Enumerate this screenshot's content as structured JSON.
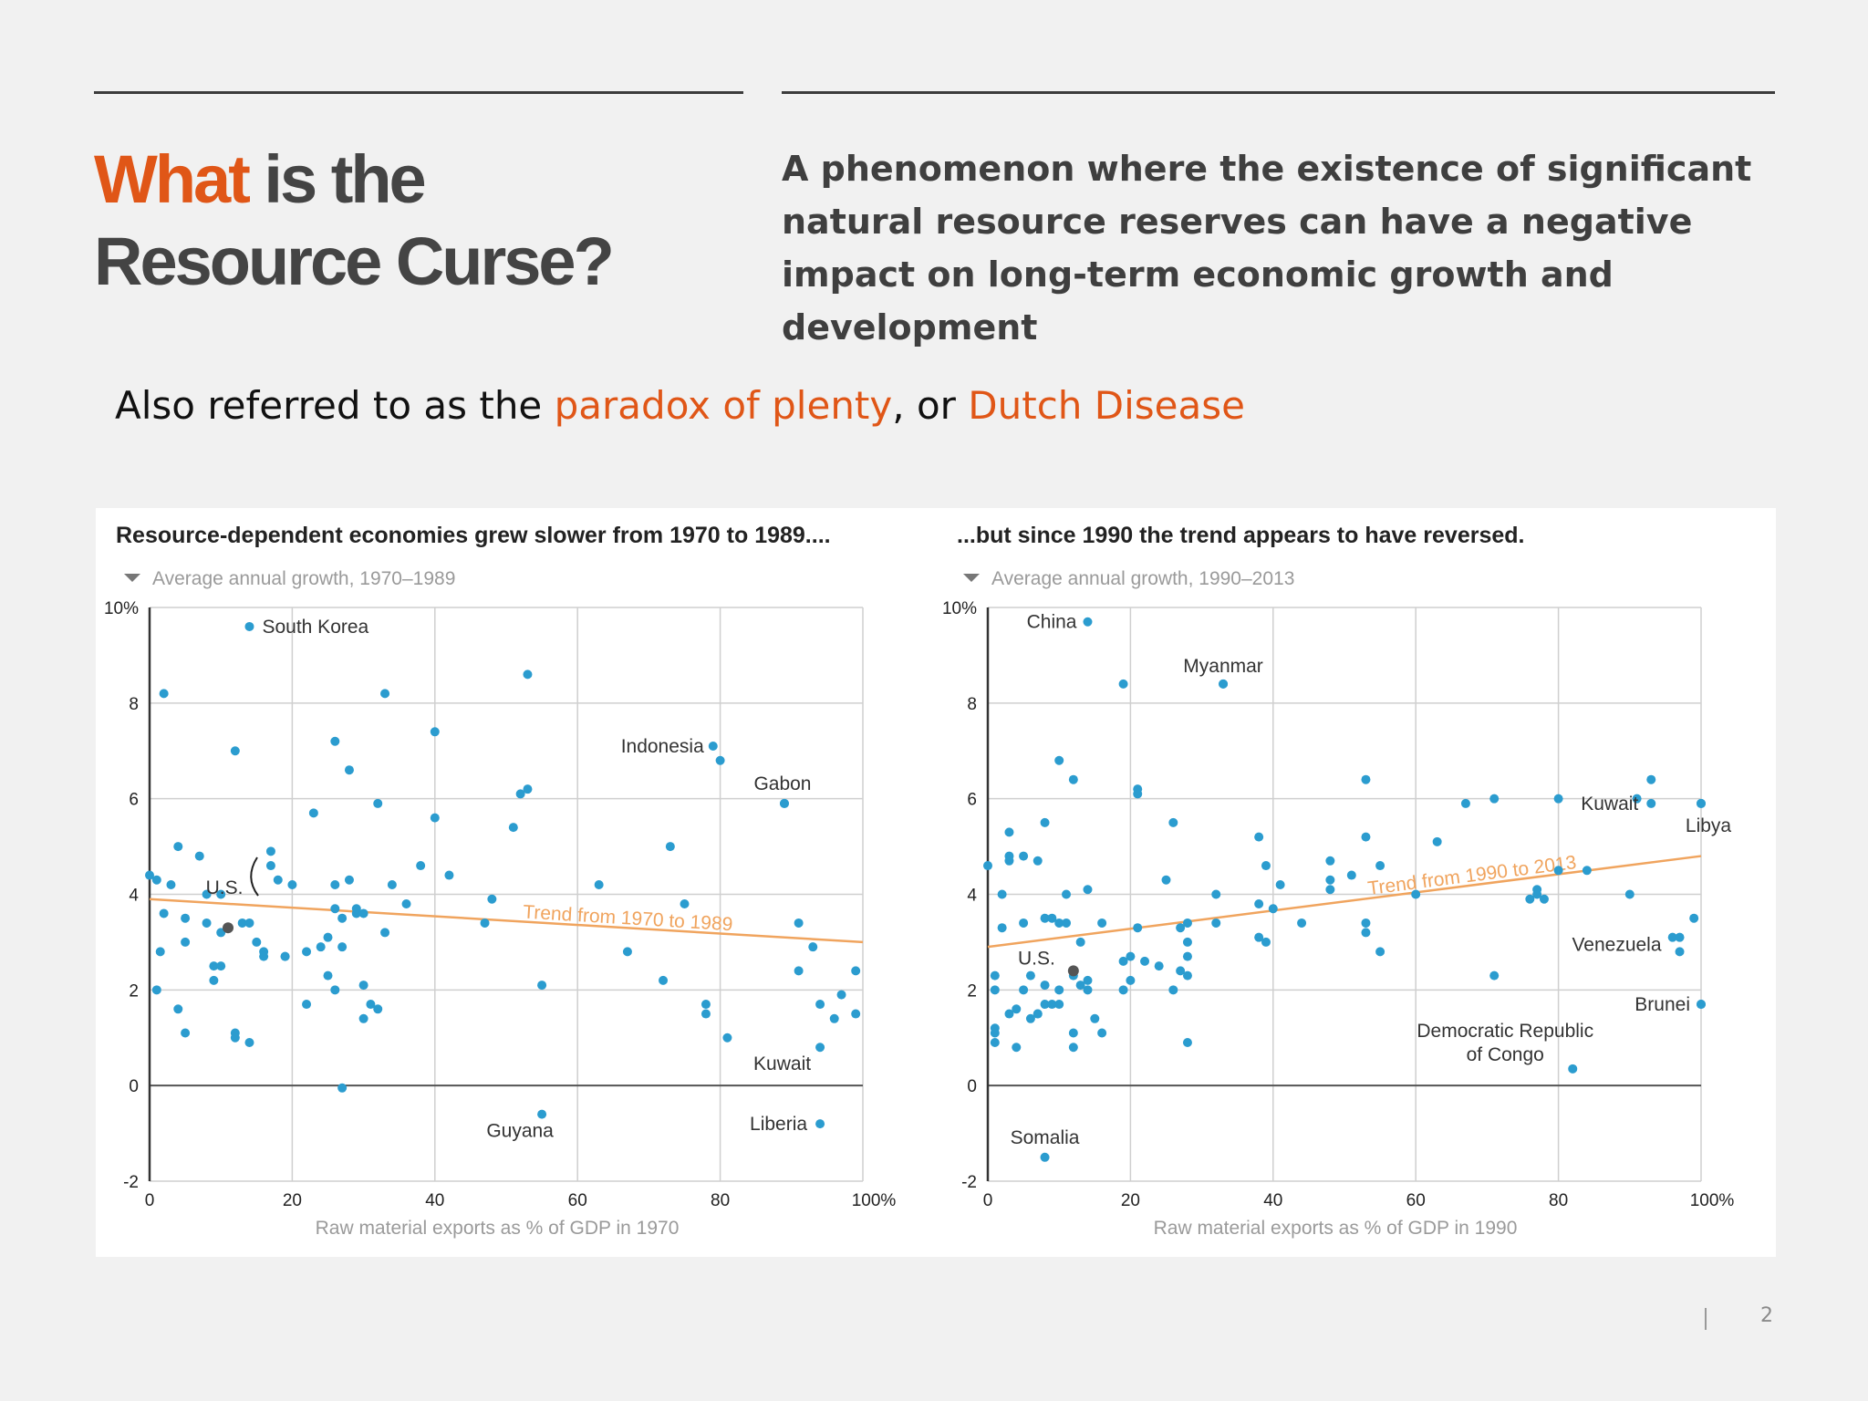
{
  "slide": {
    "title_accent": "What",
    "title_line1_rest": " is the",
    "title_line2": "Resource Curse?",
    "definition": "A phenomenon where the existence of significant natural resource reserves can have a negative impact on long-term economic growth and development",
    "alias": {
      "prefix": "Also referred to as the ",
      "term1": "paradox of plenty",
      "middle": ", or ",
      "term2": "Dutch Disease"
    },
    "page_number": "2"
  },
  "colors": {
    "accent": "#e05617",
    "title_gray": "#444444",
    "point": "#2b9ccf",
    "trend": "#f0a45e",
    "grid": "#cfcfcf"
  },
  "chart_data": [
    {
      "type": "scatter",
      "title": "Resource-dependent economies grew slower from 1970 to 1989....",
      "ylabel": "Average annual growth, 1970–1989",
      "xlabel": "Raw material exports as % of GDP in 1970",
      "xlim": [
        0,
        100
      ],
      "ylim": [
        -2,
        10
      ],
      "x_ticks": [
        "0",
        "20",
        "40",
        "60",
        "80",
        "100%"
      ],
      "y_ticks": [
        "-2",
        "0",
        "2",
        "4",
        "6",
        "8",
        "10%"
      ],
      "grid": true,
      "trend": {
        "label": "Trend from 1970 to 1989",
        "from": [
          0,
          3.9
        ],
        "to": [
          100,
          3.0
        ]
      },
      "labeled_points": [
        {
          "name": "South Korea",
          "x": 14,
          "y": 9.6
        },
        {
          "name": "Indonesia",
          "x": 79,
          "y": 7.1
        },
        {
          "name": "Gabon",
          "x": 89,
          "y": 5.9
        },
        {
          "name": "U.S.",
          "x": 11,
          "y": 3.3
        },
        {
          "name": "Kuwait",
          "x": 94,
          "y": 0.8
        },
        {
          "name": "Guyana",
          "x": 55,
          "y": -0.6
        },
        {
          "name": "Liberia",
          "x": 94,
          "y": -0.8
        }
      ],
      "points": [
        [
          0,
          4.4
        ],
        [
          1,
          4.3
        ],
        [
          1,
          2.0
        ],
        [
          1.5,
          2.8
        ],
        [
          2,
          3.6
        ],
        [
          2,
          8.2
        ],
        [
          3,
          4.2
        ],
        [
          4,
          1.6
        ],
        [
          4,
          5.0
        ],
        [
          5,
          3.5
        ],
        [
          5,
          3.0
        ],
        [
          5,
          1.1
        ],
        [
          7,
          4.8
        ],
        [
          8,
          3.4
        ],
        [
          8,
          4.0
        ],
        [
          9,
          2.5
        ],
        [
          9,
          2.2
        ],
        [
          10,
          3.2
        ],
        [
          10,
          4.0
        ],
        [
          10,
          2.5
        ],
        [
          12,
          7.0
        ],
        [
          12,
          1.1
        ],
        [
          12,
          1.0
        ],
        [
          13,
          3.4
        ],
        [
          14,
          3.4
        ],
        [
          14,
          0.9
        ],
        [
          15,
          3.0
        ],
        [
          16,
          2.8
        ],
        [
          16,
          2.7
        ],
        [
          17,
          4.6
        ],
        [
          17,
          4.9
        ],
        [
          18,
          4.3
        ],
        [
          19,
          2.7
        ],
        [
          19,
          2.7
        ],
        [
          20,
          4.2
        ],
        [
          22,
          1.7
        ],
        [
          22,
          2.8
        ],
        [
          23,
          5.7
        ],
        [
          24,
          2.9
        ],
        [
          25,
          3.1
        ],
        [
          25,
          2.3
        ],
        [
          26,
          3.7
        ],
        [
          26,
          4.2
        ],
        [
          26,
          7.2
        ],
        [
          26,
          2.0
        ],
        [
          27,
          2.9
        ],
        [
          27,
          3.5
        ],
        [
          27,
          -0.05
        ],
        [
          28,
          4.3
        ],
        [
          28,
          6.6
        ],
        [
          29,
          3.6
        ],
        [
          29,
          3.7
        ],
        [
          30,
          1.4
        ],
        [
          30,
          3.6
        ],
        [
          30,
          2.1
        ],
        [
          31,
          1.7
        ],
        [
          32,
          5.9
        ],
        [
          32,
          1.6
        ],
        [
          33,
          3.2
        ],
        [
          33,
          8.2
        ],
        [
          34,
          4.2
        ],
        [
          36,
          3.8
        ],
        [
          38,
          4.6
        ],
        [
          40,
          7.4
        ],
        [
          40,
          5.6
        ],
        [
          42,
          4.4
        ],
        [
          47,
          3.4
        ],
        [
          48,
          3.9
        ],
        [
          51,
          5.4
        ],
        [
          52,
          6.1
        ],
        [
          53,
          6.2
        ],
        [
          53,
          8.6
        ],
        [
          55,
          2.1
        ],
        [
          63,
          4.2
        ],
        [
          67,
          2.8
        ],
        [
          72,
          2.2
        ],
        [
          73,
          5.0
        ],
        [
          75,
          3.8
        ],
        [
          78,
          1.7
        ],
        [
          78,
          1.5
        ],
        [
          80,
          6.8
        ],
        [
          81,
          1.0
        ],
        [
          89,
          5.9
        ],
        [
          91,
          3.4
        ],
        [
          91,
          2.4
        ],
        [
          93,
          2.9
        ],
        [
          94,
          1.7
        ],
        [
          96,
          1.4
        ],
        [
          97,
          1.9
        ],
        [
          99,
          1.5
        ],
        [
          99,
          2.4
        ]
      ]
    },
    {
      "type": "scatter",
      "title": "...but since 1990 the trend appears to have reversed.",
      "ylabel": "Average annual growth, 1990–2013",
      "xlabel": "Raw material exports as % of GDP in 1990",
      "xlim": [
        0,
        100
      ],
      "ylim": [
        -2,
        10
      ],
      "x_ticks": [
        "0",
        "20",
        "40",
        "60",
        "80",
        "100%"
      ],
      "y_ticks": [
        "-2",
        "0",
        "2",
        "4",
        "6",
        "8",
        "10%"
      ],
      "grid": true,
      "trend": {
        "label": "Trend from 1990 to 2013",
        "from": [
          0,
          2.9
        ],
        "to": [
          100,
          4.8
        ]
      },
      "labeled_points": [
        {
          "name": "China",
          "x": 14,
          "y": 9.7
        },
        {
          "name": "Myanmar",
          "x": 33,
          "y": 8.4
        },
        {
          "name": "Kuwait",
          "x": 93,
          "y": 5.9
        },
        {
          "name": "Libya",
          "x": 100,
          "y": 5.9
        },
        {
          "name": "Venezuela",
          "x": 97,
          "y": 3.1
        },
        {
          "name": "U.S.",
          "x": 12,
          "y": 2.4
        },
        {
          "name": "Brunei",
          "x": 100,
          "y": 1.7
        },
        {
          "name": "Democratic Republic of Congo",
          "x": 82,
          "y": 0.35
        },
        {
          "name": "Somalia",
          "x": 8,
          "y": -1.5
        }
      ],
      "points": [
        [
          0,
          4.6
        ],
        [
          1,
          1.2
        ],
        [
          1,
          0.9
        ],
        [
          1,
          2.0
        ],
        [
          1,
          2.3
        ],
        [
          1,
          1.1
        ],
        [
          2,
          3.3
        ],
        [
          2,
          4.0
        ],
        [
          3,
          5.3
        ],
        [
          3,
          4.8
        ],
        [
          3,
          4.7
        ],
        [
          3,
          1.5
        ],
        [
          4,
          0.8
        ],
        [
          4,
          1.6
        ],
        [
          5,
          3.4
        ],
        [
          5,
          4.8
        ],
        [
          5,
          2.0
        ],
        [
          6,
          2.3
        ],
        [
          6,
          1.4
        ],
        [
          7,
          1.5
        ],
        [
          7,
          4.7
        ],
        [
          7,
          1.5
        ],
        [
          8,
          3.5
        ],
        [
          8,
          5.5
        ],
        [
          8,
          2.1
        ],
        [
          8,
          1.7
        ],
        [
          9,
          3.5
        ],
        [
          9,
          1.7
        ],
        [
          10,
          2.0
        ],
        [
          10,
          1.7
        ],
        [
          10,
          3.4
        ],
        [
          10,
          6.8
        ],
        [
          11,
          4.0
        ],
        [
          11,
          3.4
        ],
        [
          12,
          1.1
        ],
        [
          12,
          0.8
        ],
        [
          12,
          2.3
        ],
        [
          12,
          6.4
        ],
        [
          13,
          3.0
        ],
        [
          13,
          2.1
        ],
        [
          14,
          2.2
        ],
        [
          14,
          2.0
        ],
        [
          14,
          4.1
        ],
        [
          15,
          1.4
        ],
        [
          16,
          3.4
        ],
        [
          16,
          1.1
        ],
        [
          19,
          2.0
        ],
        [
          19,
          8.4
        ],
        [
          19,
          2.6
        ],
        [
          20,
          2.7
        ],
        [
          20,
          2.2
        ],
        [
          21,
          6.1
        ],
        [
          21,
          6.2
        ],
        [
          21,
          3.3
        ],
        [
          22,
          2.6
        ],
        [
          24,
          2.5
        ],
        [
          25,
          4.3
        ],
        [
          26,
          5.5
        ],
        [
          26,
          2.0
        ],
        [
          27,
          3.3
        ],
        [
          27,
          2.4
        ],
        [
          28,
          0.9
        ],
        [
          28,
          3.4
        ],
        [
          28,
          2.7
        ],
        [
          28,
          2.3
        ],
        [
          28,
          3.0
        ],
        [
          32,
          3.4
        ],
        [
          32,
          4.0
        ],
        [
          33,
          8.4
        ],
        [
          38,
          5.2
        ],
        [
          38,
          3.1
        ],
        [
          38,
          3.8
        ],
        [
          39,
          4.6
        ],
        [
          39,
          3.0
        ],
        [
          40,
          3.7
        ],
        [
          41,
          4.2
        ],
        [
          44,
          3.4
        ],
        [
          48,
          4.3
        ],
        [
          48,
          4.1
        ],
        [
          48,
          4.7
        ],
        [
          51,
          4.4
        ],
        [
          53,
          6.4
        ],
        [
          53,
          5.2
        ],
        [
          53,
          3.2
        ],
        [
          53,
          3.4
        ],
        [
          55,
          2.8
        ],
        [
          55,
          4.6
        ],
        [
          60,
          4.0
        ],
        [
          63,
          5.1
        ],
        [
          67,
          5.9
        ],
        [
          71,
          6.0
        ],
        [
          71,
          2.3
        ],
        [
          76,
          3.9
        ],
        [
          77,
          4.0
        ],
        [
          77,
          4.1
        ],
        [
          78,
          3.9
        ],
        [
          80,
          6.0
        ],
        [
          80,
          4.5
        ],
        [
          84,
          4.5
        ],
        [
          90,
          4.0
        ],
        [
          91,
          6.0
        ],
        [
          93,
          6.4
        ],
        [
          96,
          3.1
        ],
        [
          97,
          2.8
        ],
        [
          99,
          3.5
        ],
        [
          100,
          5.9
        ],
        [
          100,
          1.7
        ]
      ]
    }
  ]
}
